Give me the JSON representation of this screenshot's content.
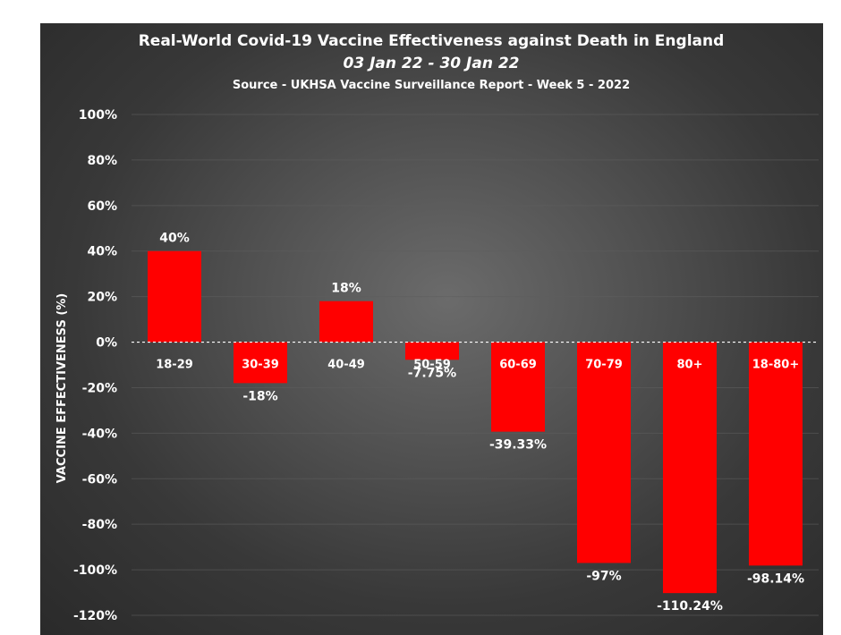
{
  "chart_data": {
    "type": "bar",
    "title": "Real-World Covid-19 Vaccine Effectiveness against Death in England",
    "subtitle": "03 Jan 22 - 30 Jan 22",
    "source": "Source - UKHSA Vaccine Surveillance Report - Week 5 - 2022",
    "xlabel": "",
    "ylabel": "VACCINE EFFECTIVENESS (%)",
    "ylim": [
      -120,
      100
    ],
    "yticks": [
      100,
      80,
      60,
      40,
      20,
      0,
      -20,
      -40,
      -60,
      -80,
      -100,
      -120
    ],
    "ytick_labels": [
      "100%",
      "80%",
      "60%",
      "40%",
      "20%",
      "0%",
      "-20%",
      "-40%",
      "-60%",
      "-80%",
      "-100%",
      "-120%"
    ],
    "categories": [
      "18-29",
      "30-39",
      "40-49",
      "50-59",
      "60-69",
      "70-79",
      "80+",
      "18-80+"
    ],
    "values": [
      40,
      -18,
      18,
      -7.75,
      -39.33,
      -97,
      -110.24,
      -98.14
    ],
    "data_labels": [
      "40%",
      "-18%",
      "18%",
      "-7.75%",
      "-39.33%",
      "-97%",
      "-110.24%",
      "-98.14%"
    ],
    "grid": true,
    "legend": "none",
    "colors": {
      "bar": "#ff0000",
      "text": "#ffffff",
      "background": "#4a4a4a",
      "zero_line": "#ffffff"
    }
  }
}
